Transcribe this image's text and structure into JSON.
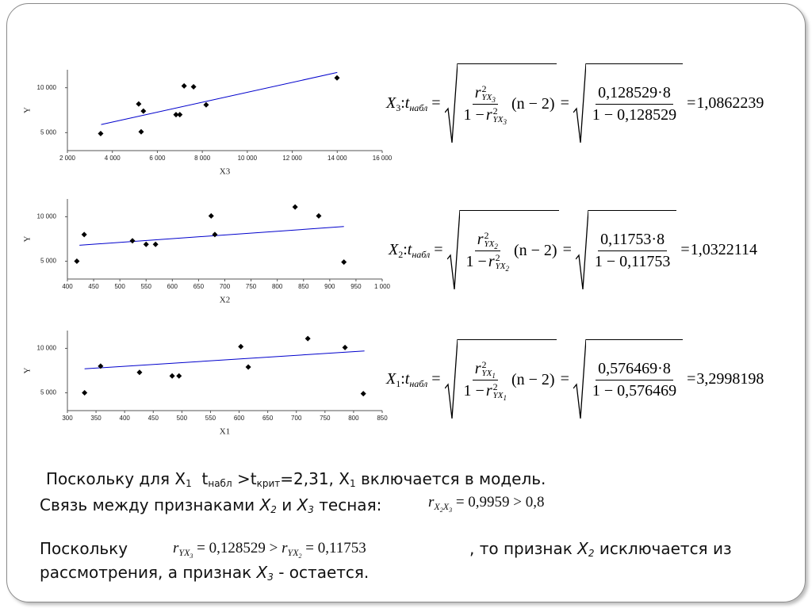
{
  "chart_data": [
    {
      "type": "scatter",
      "x_label": "X3",
      "y_label": "Y",
      "xlim": [
        2000,
        16000
      ],
      "ylim": [
        3000,
        12000
      ],
      "xticks": [
        {
          "value": 2000,
          "label": "2 000"
        },
        {
          "value": 4000,
          "label": "4 000"
        },
        {
          "value": 6000,
          "label": "6 000"
        },
        {
          "value": 8000,
          "label": "8 000"
        },
        {
          "value": 10000,
          "label": "10 000"
        },
        {
          "value": 12000,
          "label": "12 000"
        },
        {
          "value": 14000,
          "label": "14 000"
        },
        {
          "value": 16000,
          "label": "16 000"
        }
      ],
      "yticks": [
        {
          "value": 5000,
          "label": "5 000"
        },
        {
          "value": 10000,
          "label": "10 000"
        }
      ],
      "x": [
        3480,
        5170,
        5380,
        5280,
        6830,
        7000,
        7190,
        7610,
        8170,
        13990
      ],
      "values": [
        4900,
        8200,
        7400,
        5100,
        7000,
        7000,
        10200,
        10100,
        8100,
        11100
      ],
      "color": "#000000",
      "trend": {
        "color": "#0000cc",
        "x": [
          3500,
          14000
        ],
        "values": [
          5900,
          11700
        ]
      }
    },
    {
      "type": "scatter",
      "x_label": "X2",
      "y_label": "Y",
      "xlim": [
        400,
        1000
      ],
      "ylim": [
        3000,
        12000
      ],
      "xticks": [
        400,
        450,
        500,
        550,
        600,
        650,
        700,
        750,
        800,
        850,
        900,
        950,
        {
          "value": 1000,
          "label": "1 000"
        }
      ],
      "yticks": [
        {
          "value": 5000,
          "label": "5 000"
        },
        {
          "value": 10000,
          "label": "10 000"
        }
      ],
      "x": [
        418,
        432,
        524,
        550,
        568,
        674,
        681,
        834,
        879,
        927
      ],
      "values": [
        5000,
        8000,
        7300,
        6900,
        6900,
        10100,
        8000,
        11100,
        10100,
        4900
      ],
      "color": "#000000",
      "trend": {
        "color": "#0000cc",
        "x": [
          423,
          927
        ],
        "values": [
          6800,
          8900
        ]
      }
    },
    {
      "type": "scatter",
      "x_label": "X1",
      "y_label": "Y",
      "xlim": [
        300,
        850
      ],
      "ylim": [
        3000,
        12000
      ],
      "xticks": [
        300,
        350,
        400,
        450,
        500,
        550,
        600,
        650,
        700,
        750,
        800,
        850
      ],
      "yticks": [
        {
          "value": 5000,
          "label": "5 000"
        },
        {
          "value": 10000,
          "label": "10 000"
        }
      ],
      "x": [
        330,
        358,
        426,
        483,
        495,
        603,
        616,
        720,
        785,
        817
      ],
      "values": [
        5000,
        8000,
        7300,
        6900,
        6900,
        10200,
        7900,
        11100,
        10100,
        4900
      ],
      "color": "#000000",
      "trend": {
        "color": "#0000cc",
        "x": [
          330,
          819
        ],
        "values": [
          7700,
          9700
        ]
      }
    }
  ],
  "formulas": [
    {
      "var": "X",
      "idx": "3",
      "colon": ":",
      "t": "t",
      "t_sub": "набл",
      "eq": "=",
      "r": "r",
      "r_sub": "YX",
      "sq": "2",
      "one_minus": "1 −",
      "n_term": "(n − 2)",
      "num": "0,128529·8",
      "den": "1 − 0,128529",
      "result": "1,0862239"
    },
    {
      "var": "X",
      "idx": "2",
      "colon": ":",
      "t": "t",
      "t_sub": "набл",
      "eq": "=",
      "r": "r",
      "r_sub": "YX",
      "sq": "2",
      "one_minus": "1 −",
      "n_term": "(n − 2)",
      "num": "0,11753·8",
      "den": "1 − 0,11753",
      "result": "1,0322114"
    },
    {
      "var": "X",
      "idx": "1",
      "colon": ":",
      "t": "t",
      "t_sub": "набл",
      "eq": "=",
      "r": "r",
      "r_sub": "YX",
      "sq": "2",
      "one_minus": "1 −",
      "n_term": "(n − 2)",
      "num": "0,576469·8",
      "den": "1 − 0,576469",
      "result": "3,2998198"
    }
  ],
  "runs": [
    [
      {
        "t": "Поскольку для X",
        "s": "n"
      },
      {
        "t": "1",
        "s": "sub"
      },
      {
        "t": "  t",
        "s": "n"
      },
      {
        "t": "набл",
        "s": "sub"
      },
      {
        "t": " >t",
        "s": "n"
      },
      {
        "t": "крит",
        "s": "sub"
      },
      {
        "t": "=2,31, X",
        "s": "n"
      },
      {
        "t": "1",
        "s": "sub"
      },
      {
        "t": " включается в модель.",
        "s": "n"
      }
    ],
    [
      {
        "t": "Связь между признаками ",
        "s": "n"
      },
      {
        "t": "X",
        "s": "i"
      },
      {
        "t": "2",
        "s": "isub"
      },
      {
        "t": " и ",
        "s": "n"
      },
      {
        "t": "X",
        "s": "i"
      },
      {
        "t": "3",
        "s": "isub"
      },
      {
        "t": " тесная:",
        "s": "n"
      }
    ],
    [
      {
        "t": "r",
        "s": "si"
      },
      {
        "t": "X",
        "s": "sisub"
      },
      {
        "t": "2",
        "s": "sisub2"
      },
      {
        "t": "X",
        "s": "sisub"
      },
      {
        "t": "3",
        "s": "sisub2"
      },
      {
        "t": " = 0,9959 > 0,8",
        "s": "s"
      }
    ],
    [
      {
        "t": "Поскольку",
        "s": "n"
      }
    ],
    [
      {
        "t": "r",
        "s": "si"
      },
      {
        "t": "YX",
        "s": "sisub"
      },
      {
        "t": "3",
        "s": "sisub2"
      },
      {
        "t": " = 0,128529 > ",
        "s": "s"
      },
      {
        "t": "r",
        "s": "si"
      },
      {
        "t": "YX",
        "s": "sisub"
      },
      {
        "t": "2",
        "s": "sisub2"
      },
      {
        "t": " = 0,11753",
        "s": "s"
      }
    ],
    [
      {
        "t": ", то признак ",
        "s": "n"
      },
      {
        "t": "X",
        "s": "i"
      },
      {
        "t": "2",
        "s": "isub"
      },
      {
        "t": " исключается из",
        "s": "n"
      }
    ],
    [
      {
        "t": "рассмотрения, а признак ",
        "s": "n"
      },
      {
        "t": "X",
        "s": "i"
      },
      {
        "t": "3",
        "s": "isub"
      },
      {
        "t": " - остается.",
        "s": "n"
      }
    ]
  ]
}
